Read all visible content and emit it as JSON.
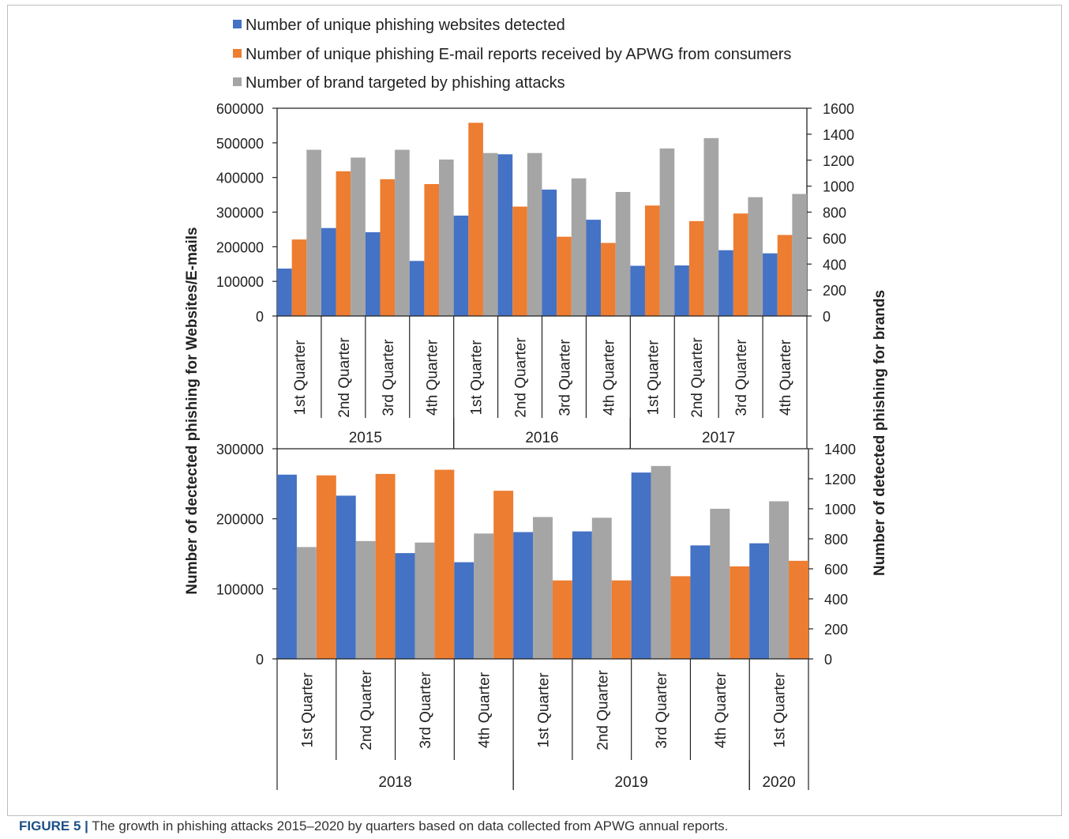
{
  "colors": {
    "websites": "#4472C4",
    "emails": "#ED7D31",
    "brands": "#A5A5A5"
  },
  "chart_data": [
    {
      "type": "bar",
      "ylabel": "Number of dectected phishing for Websites/E-mails",
      "y2label": "Number of detected phishing for brands",
      "ylim": [
        0,
        600000
      ],
      "yticks": [
        0,
        100000,
        200000,
        300000,
        400000,
        500000,
        600000
      ],
      "y2lim": [
        0,
        1600
      ],
      "y2ticks": [
        0,
        200,
        400,
        600,
        800,
        1000,
        1200,
        1400,
        1600
      ],
      "categories": [
        "1st Quarter",
        "2nd Quarter",
        "3rd Quarter",
        "4th Quarter",
        "1st Quarter",
        "2nd Quarter",
        "3rd Quarter",
        "4th Quarter",
        "1st Quarter",
        "2nd Quarter",
        "3rd Quarter",
        "4th Quarter"
      ],
      "groups": [
        {
          "label": "2015",
          "count": 4
        },
        {
          "label": "2016",
          "count": 4
        },
        {
          "label": "2017",
          "count": 4
        }
      ],
      "series": [
        {
          "name": "Number of unique phishing websites detected",
          "axis": "left",
          "values": [
            137000,
            254000,
            242000,
            159000,
            290000,
            467000,
            365000,
            278000,
            145000,
            146000,
            190000,
            181000
          ]
        },
        {
          "name": "Number of unique phishing E-mail reports  received by APWG from consumers",
          "axis": "left",
          "values": [
            221000,
            418000,
            395000,
            381000,
            558000,
            316000,
            229000,
            211000,
            319000,
            274000,
            296000,
            234000
          ]
        },
        {
          "name": "Number of brand targeted by phishing attacks",
          "axis": "right",
          "values": [
            1280,
            1220,
            1280,
            1205,
            1255,
            1255,
            1060,
            955,
            1290,
            1370,
            915,
            940
          ]
        }
      ]
    },
    {
      "type": "bar",
      "ylim": [
        0,
        300000
      ],
      "yticks": [
        0,
        100000,
        200000,
        300000
      ],
      "y2lim": [
        0,
        1400
      ],
      "y2ticks": [
        0,
        200,
        400,
        600,
        800,
        1000,
        1200,
        1400
      ],
      "categories": [
        "1st Quarter",
        "2nd Quarter",
        "3rd Quarter",
        "4th Quarter",
        "1st Quarter",
        "2nd Quarter",
        "3rd Quarter",
        "4th Quarter",
        "1st Quarter"
      ],
      "groups": [
        {
          "label": "2018",
          "count": 4
        },
        {
          "label": "2019",
          "count": 4
        },
        {
          "label": "2020",
          "count": 1
        }
      ],
      "series": [
        {
          "name": "Number of unique phishing websites detected",
          "axis": "left",
          "values": [
            263000,
            233000,
            151000,
            138000,
            181000,
            182000,
            266000,
            162000,
            165000
          ]
        },
        {
          "name": "Number of unique phishing E-mail reports  received by APWG from consumers",
          "axis": "left",
          "values": [
            262000,
            264000,
            270000,
            240000,
            112000,
            112000,
            118000,
            132000,
            140000
          ]
        },
        {
          "name": "Number of brand targeted by phishing attacks",
          "axis": "right",
          "values": [
            745,
            785,
            775,
            835,
            945,
            940,
            1285,
            1000,
            1050
          ]
        }
      ]
    }
  ],
  "legend": [
    {
      "label": "Number of unique phishing websites detected",
      "color": "#4472C4"
    },
    {
      "label": "Number of unique phishing E-mail reports  received by APWG from consumers",
      "color": "#ED7D31"
    },
    {
      "label": "Number of brand targeted by phishing attacks",
      "color": "#A5A5A5"
    }
  ],
  "caption": {
    "label": "FIGURE 5 |",
    "text": " The growth in phishing attacks 2015–2020 by quarters based on data collected from APWG annual reports."
  }
}
